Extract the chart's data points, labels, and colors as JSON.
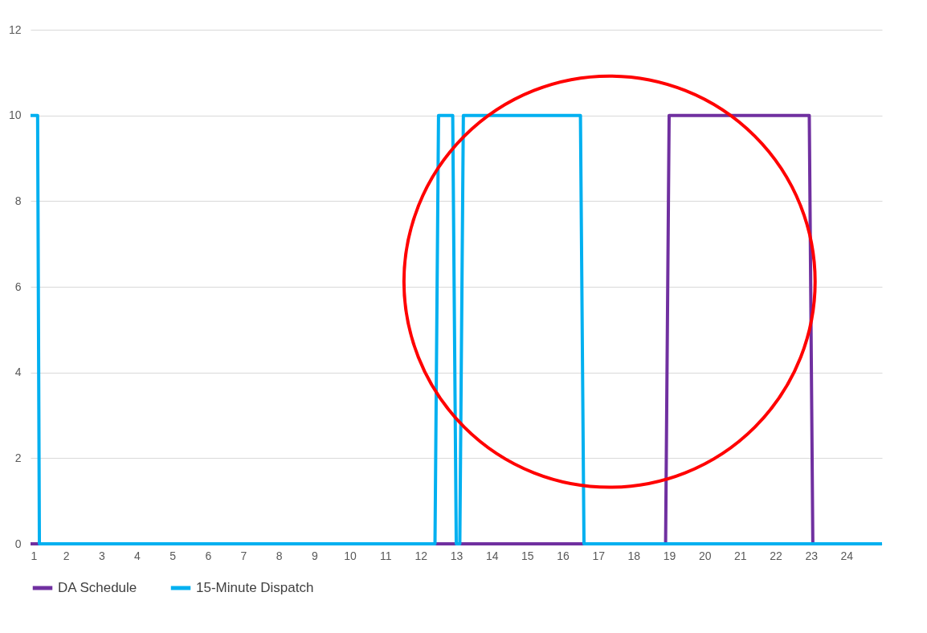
{
  "chart_data": {
    "type": "line",
    "xlim": [
      1,
      25
    ],
    "xticks": [
      1,
      2,
      3,
      4,
      5,
      6,
      7,
      8,
      9,
      10,
      11,
      12,
      13,
      14,
      15,
      16,
      17,
      18,
      19,
      20,
      21,
      22,
      23,
      24
    ],
    "ylim": [
      0,
      12
    ],
    "yticks": [
      0,
      2,
      4,
      6,
      8,
      10,
      12
    ],
    "series": [
      {
        "name": "DA Schedule",
        "color": "#7030a0",
        "x": [
          1,
          18.9,
          19.0,
          22.95,
          23.05,
          25
        ],
        "values": [
          0,
          0,
          10,
          10,
          0,
          0
        ]
      },
      {
        "name": "15-Minute Dispatch",
        "color": "#00b0f0",
        "x": [
          1,
          1.2,
          1.25,
          12.4,
          12.5,
          12.9,
          13.0,
          13.1,
          13.2,
          16.5,
          16.6,
          25
        ],
        "values": [
          10,
          10,
          0,
          0,
          10,
          10,
          0,
          0,
          10,
          10,
          0,
          0
        ]
      }
    ],
    "grid": "y",
    "legend": "bottom",
    "marker": "none",
    "line_style": "solid"
  }
}
